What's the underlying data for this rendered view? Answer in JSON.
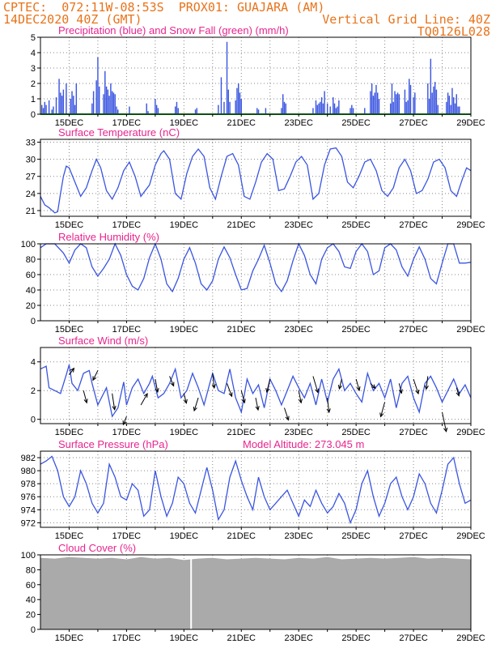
{
  "header": {
    "left_line1": "CPTEC:  072:11W-08:53S  PROX01: GUAJARA (AM)",
    "left_line2": "14DEC2020 40Z (GMT)",
    "right_line2": "Vertical Grid Line: 40Z",
    "right_line3": "TQ0126L028",
    "color": "#e8731a"
  },
  "colors": {
    "title": "#e8248f",
    "line": "#3a55e0",
    "snow": "#1f9e2a",
    "cloud": "#aaaaaa",
    "arrow": "#000000",
    "grid": "#888888"
  },
  "x_axis": {
    "start": "14DEC",
    "end": "29DEC",
    "tick_labels": [
      "15DEC",
      "17DEC",
      "19DEC",
      "21DEC",
      "23DEC",
      "25DEC",
      "27DEC",
      "29DEC"
    ]
  },
  "chart_data": [
    {
      "id": "precip",
      "type": "bar",
      "title": "Precipitation (blue) and Snow Fall (green) (mm/h)",
      "ylim": [
        0,
        5
      ],
      "yticks": [
        0,
        1,
        2,
        3,
        4,
        5
      ],
      "x": [
        0.05,
        0.1,
        0.15,
        0.2,
        0.3,
        0.4,
        0.45,
        0.55,
        0.65,
        0.7,
        0.75,
        0.8,
        0.9,
        1.05,
        1.1,
        1.15,
        1.2,
        1.25,
        1.8,
        1.85,
        1.95,
        2.0,
        2.05,
        2.2,
        2.25,
        2.3,
        2.35,
        2.4,
        2.45,
        2.5,
        2.55,
        2.6,
        2.65,
        2.7,
        3.1,
        3.7,
        3.75,
        4.0,
        4.05,
        4.1,
        4.7,
        4.75,
        4.8,
        5.4,
        5.45,
        6.2,
        6.3,
        6.4,
        6.5,
        6.55,
        6.6,
        6.8,
        6.85,
        6.9,
        6.95,
        7.0,
        7.55,
        7.6,
        7.85,
        8.4,
        8.45,
        8.5,
        8.55,
        9.5,
        9.6,
        9.65,
        9.7,
        9.75,
        9.8,
        9.85,
        9.9,
        10.0,
        10.1,
        10.2,
        10.25,
        10.3,
        10.35,
        10.4,
        10.8,
        10.85,
        10.9,
        11.3,
        11.5,
        11.55,
        11.6,
        11.65,
        11.7,
        11.75,
        11.8,
        12.2,
        12.25,
        12.3,
        12.35,
        12.4,
        12.45,
        12.5,
        12.7,
        12.75,
        12.8,
        12.85,
        12.9,
        13.0,
        13.05,
        13.5,
        13.55,
        13.6,
        13.65,
        13.7,
        13.75,
        13.8,
        13.85,
        14.15,
        14.2,
        14.25,
        14.3,
        14.35,
        14.4,
        14.45,
        14.5,
        14.55,
        14.6
      ],
      "values": [
        0.6,
        0.4,
        0.8,
        0.6,
        0.9,
        0.3,
        0.5,
        1.1,
        2.3,
        1.4,
        1.2,
        1.6,
        2.0,
        1.0,
        1.5,
        1.2,
        0.6,
        2.0,
        0.7,
        1.5,
        2.2,
        3.7,
        1.8,
        1.3,
        2.8,
        1.8,
        1.6,
        1.2,
        2.0,
        1.5,
        1.4,
        1.3,
        0.5,
        0.3,
        0.5,
        0.7,
        0.2,
        1.0,
        0.6,
        0.4,
        0.5,
        0.8,
        0.4,
        0.3,
        0.4,
        0.6,
        2.4,
        0.8,
        4.7,
        1.6,
        0.8,
        0.9,
        1.7,
        2.0,
        1.4,
        1.0,
        0.4,
        0.3,
        0.4,
        0.4,
        1.3,
        0.8,
        0.7,
        0.4,
        0.9,
        0.6,
        0.7,
        0.8,
        1.1,
        0.7,
        1.5,
        0.7,
        0.5,
        1.1,
        0.7,
        0.4,
        0.5,
        0.9,
        0.4,
        0.6,
        0.4,
        0.4,
        1.5,
        2.0,
        1.2,
        1.4,
        1.9,
        1.4,
        1.0,
        0.7,
        2.0,
        0.8,
        1.5,
        1.3,
        1.4,
        1.3,
        1.6,
        0.8,
        0.9,
        2.3,
        1.9,
        1.1,
        1.4,
        2.0,
        1.0,
        3.6,
        1.4,
        1.8,
        2.1,
        1.6,
        0.6,
        0.8,
        1.4,
        1.2,
        0.6,
        1.7,
        1.1,
        0.7,
        1.3,
        0.5,
        0.5
      ],
      "snow_values": 0
    },
    {
      "id": "temperature",
      "type": "line",
      "title": "Surface Temperature (nC)",
      "ylim": [
        20,
        33.5
      ],
      "yticks": [
        21,
        24,
        27,
        30,
        33
      ],
      "x": [
        0,
        0.15,
        0.3,
        0.5,
        0.6,
        0.7,
        0.8,
        0.9,
        1.0,
        1.2,
        1.4,
        1.6,
        1.8,
        1.95,
        2.1,
        2.3,
        2.5,
        2.7,
        2.9,
        3.1,
        3.3,
        3.5,
        3.8,
        4.0,
        4.2,
        4.3,
        4.5,
        4.7,
        4.9,
        5.1,
        5.3,
        5.5,
        5.7,
        5.9,
        6.1,
        6.3,
        6.5,
        6.7,
        6.9,
        7.1,
        7.3,
        7.5,
        7.7,
        7.9,
        8.1,
        8.3,
        8.5,
        8.7,
        8.9,
        9.1,
        9.3,
        9.5,
        9.7,
        9.9,
        10.1,
        10.3,
        10.5,
        10.7,
        10.9,
        11.1,
        11.3,
        11.5,
        11.7,
        11.9,
        12.1,
        12.3,
        12.5,
        12.7,
        12.9,
        13.1,
        13.3,
        13.5,
        13.7,
        13.9,
        14.1,
        14.3,
        14.5,
        14.7,
        14.85,
        15.0
      ],
      "values": [
        23.5,
        22,
        21.5,
        20.6,
        20.8,
        24,
        27,
        28.8,
        28.5,
        26,
        23.5,
        25,
        28,
        30,
        28.5,
        24.5,
        23,
        25,
        28,
        29.5,
        27,
        23.5,
        25.5,
        29,
        31,
        31.5,
        30,
        24,
        23,
        27.5,
        30.5,
        31.8,
        30.5,
        25,
        23,
        27,
        30.5,
        31,
        29,
        23.5,
        23,
        26,
        29.5,
        31,
        30,
        24.5,
        24.8,
        27,
        29.5,
        30.5,
        29,
        23,
        24,
        29,
        31.8,
        32,
        30.5,
        26,
        25,
        27,
        29.5,
        30,
        28,
        24.5,
        23.5,
        25,
        28.5,
        30,
        28,
        24,
        24.5,
        26.5,
        29.5,
        30,
        28.5,
        24.5,
        23.5,
        26.5,
        28.5,
        28
      ]
    },
    {
      "id": "humidity",
      "type": "line",
      "title": "Relative Humidity (%)",
      "ylim": [
        0,
        100
      ],
      "yticks": [
        0,
        20,
        40,
        60,
        80,
        100
      ],
      "x": [
        0,
        0.2,
        0.5,
        0.8,
        1.0,
        1.2,
        1.4,
        1.6,
        1.8,
        2.0,
        2.2,
        2.4,
        2.6,
        2.8,
        3.0,
        3.2,
        3.4,
        3.6,
        3.8,
        4.0,
        4.2,
        4.4,
        4.6,
        4.8,
        5.0,
        5.2,
        5.4,
        5.6,
        5.8,
        6.0,
        6.2,
        6.4,
        6.6,
        6.8,
        7.0,
        7.2,
        7.4,
        7.6,
        7.8,
        8.0,
        8.2,
        8.4,
        8.6,
        8.8,
        9.0,
        9.2,
        9.4,
        9.6,
        9.8,
        10.0,
        10.2,
        10.4,
        10.6,
        10.8,
        11.0,
        11.2,
        11.4,
        11.6,
        11.8,
        12.0,
        12.2,
        12.4,
        12.6,
        12.8,
        13.0,
        13.2,
        13.4,
        13.6,
        13.8,
        14.0,
        14.2,
        14.4,
        14.6,
        14.8,
        15.0
      ],
      "values": [
        95,
        100,
        100,
        88,
        75,
        92,
        100,
        95,
        70,
        58,
        68,
        80,
        100,
        85,
        60,
        45,
        40,
        55,
        82,
        100,
        80,
        48,
        38,
        55,
        80,
        95,
        75,
        48,
        40,
        52,
        80,
        96,
        82,
        60,
        40,
        42,
        65,
        80,
        98,
        75,
        48,
        38,
        52,
        78,
        100,
        85,
        60,
        48,
        80,
        95,
        100,
        90,
        70,
        68,
        90,
        100,
        90,
        60,
        65,
        95,
        100,
        92,
        70,
        58,
        80,
        96,
        80,
        55,
        48,
        75,
        100,
        100,
        75,
        75,
        76
      ]
    },
    {
      "id": "wind",
      "type": "line",
      "title": "Surface Wind (m/s)",
      "ylim": [
        -0.3,
        5
      ],
      "yticks": [
        0,
        2,
        4
      ],
      "x": [
        0,
        0.2,
        0.3,
        0.5,
        0.7,
        0.9,
        1.0,
        1.1,
        1.3,
        1.5,
        1.7,
        1.8,
        2.0,
        2.2,
        2.3,
        2.5,
        2.7,
        2.9,
        3.0,
        3.2,
        3.4,
        3.6,
        3.8,
        3.9,
        4.1,
        4.3,
        4.5,
        4.7,
        4.9,
        5.1,
        5.3,
        5.5,
        5.7,
        5.9,
        6.0,
        6.2,
        6.4,
        6.6,
        6.8,
        7.0,
        7.2,
        7.4,
        7.6,
        7.8,
        8.0,
        8.2,
        8.4,
        8.6,
        8.8,
        9.0,
        9.2,
        9.4,
        9.6,
        9.8,
        10.0,
        10.2,
        10.4,
        10.6,
        10.8,
        11.0,
        11.2,
        11.4,
        11.6,
        11.8,
        12.0,
        12.2,
        12.4,
        12.6,
        12.8,
        13.0,
        13.2,
        13.4,
        13.6,
        13.8,
        14.0,
        14.2,
        14.4,
        14.6,
        14.8,
        15.0
      ],
      "values": [
        3.5,
        3.7,
        2.2,
        2.0,
        1.8,
        3.1,
        3.8,
        2.5,
        2.0,
        3.2,
        3.4,
        2.5,
        1.0,
        1.8,
        2.2,
        0.2,
        0.8,
        2.6,
        1.0,
        2.2,
        2.8,
        1.8,
        2.5,
        3.0,
        1.5,
        1.8,
        2.5,
        3.5,
        1.5,
        2.0,
        3.2,
        2.2,
        1.0,
        2.5,
        3.2,
        2.0,
        1.8,
        3.5,
        1.5,
        0.5,
        2.8,
        1.8,
        2.4,
        0.8,
        2.8,
        2.0,
        1.0,
        2.0,
        3.0,
        2.2,
        1.5,
        2.5,
        1.0,
        2.8,
        1.2,
        2.8,
        3.5,
        2.0,
        2.5,
        1.8,
        1.2,
        3.2,
        2.0,
        2.5,
        1.5,
        2.8,
        0.8,
        2.5,
        3.0,
        1.5,
        0.5,
        2.5,
        3.0,
        2.2,
        1.2,
        2.0,
        2.8,
        1.8,
        2.4,
        1.5
      ],
      "arrows_x": [
        1.0,
        1.5,
        2.0,
        2.5,
        3.0,
        3.5,
        4.0,
        4.5,
        5.0,
        5.5,
        6.0,
        6.5,
        7.0,
        7.5,
        8.0,
        8.5,
        9.0,
        9.5,
        10.0,
        10.5,
        11.0,
        11.5,
        12.0,
        12.5,
        13.0,
        13.5,
        14.0,
        14.5
      ],
      "arrows_u": [
        0.6,
        0.4,
        -0.6,
        0.3,
        -0.4,
        0.8,
        0.3,
        0.5,
        0.3,
        -0.5,
        0.2,
        0.6,
        0.4,
        0.3,
        -0.4,
        0.5,
        0.3,
        0.6,
        0.2,
        -0.3,
        0.4,
        0.6,
        -0.5,
        0.3,
        0.6,
        -0.2,
        0.5,
        0.3
      ],
      "arrows_v": [
        0.8,
        -1.5,
        -1.2,
        -2.0,
        -1.0,
        1.4,
        -1.6,
        -1.2,
        -1.2,
        -1.6,
        -1.8,
        -1.6,
        -1.5,
        -1.5,
        -1.6,
        -1.5,
        -1.5,
        -2.0,
        -1.8,
        -1.2,
        -1.4,
        -0.6,
        -1.8,
        -1.2,
        -1.8,
        -1.6,
        -2.4,
        -1.0
      ]
    },
    {
      "id": "pressure",
      "type": "line",
      "title": "Surface Pressure (hPa)",
      "subtitle": "Model Altitude: 273.045 m",
      "ylim": [
        971.3,
        983
      ],
      "yticks": [
        972,
        974,
        976,
        978,
        980,
        982
      ],
      "x": [
        0,
        0.2,
        0.4,
        0.6,
        0.8,
        1.0,
        1.2,
        1.4,
        1.6,
        1.8,
        2.0,
        2.2,
        2.4,
        2.6,
        2.8,
        3.0,
        3.2,
        3.4,
        3.6,
        3.8,
        4.0,
        4.2,
        4.4,
        4.6,
        4.8,
        5.0,
        5.2,
        5.4,
        5.6,
        5.8,
        6.0,
        6.2,
        6.4,
        6.6,
        6.8,
        7.0,
        7.2,
        7.4,
        7.6,
        7.8,
        8.0,
        8.2,
        8.4,
        8.6,
        8.8,
        9.0,
        9.2,
        9.4,
        9.6,
        9.8,
        10.0,
        10.2,
        10.4,
        10.6,
        10.8,
        11.0,
        11.2,
        11.4,
        11.6,
        11.8,
        12.0,
        12.2,
        12.4,
        12.6,
        12.8,
        13.0,
        13.2,
        13.4,
        13.6,
        13.8,
        14.0,
        14.2,
        14.4,
        14.6,
        14.8,
        15.0
      ],
      "values": [
        981,
        981.5,
        982.2,
        980,
        976,
        974.5,
        976,
        980,
        978,
        975,
        973.5,
        975,
        981,
        979,
        976,
        975.5,
        978,
        977,
        973,
        974,
        980,
        976,
        973,
        975,
        979,
        978,
        975,
        973.5,
        977,
        980.5,
        977,
        972.5,
        974,
        979,
        981.5,
        978.5,
        976,
        974,
        979,
        976,
        974,
        975,
        976,
        977,
        975,
        973,
        975.5,
        974.5,
        977,
        975,
        973.5,
        974.5,
        976.5,
        975,
        972,
        974,
        978,
        980,
        976,
        973,
        975,
        978,
        979,
        976,
        974,
        976,
        979.5,
        978,
        975,
        973.5,
        977,
        981,
        982,
        978,
        975,
        975.5
      ]
    },
    {
      "id": "cloud",
      "type": "area",
      "title": "Cloud Cover (%)",
      "ylim": [
        0,
        100
      ],
      "yticks": [
        0,
        20,
        40,
        60,
        80,
        100
      ],
      "x": [
        0,
        0.5,
        1,
        1.5,
        2,
        2.5,
        3,
        3.5,
        4,
        4.5,
        5,
        5.5,
        6,
        6.5,
        7,
        7.5,
        8,
        8.5,
        9,
        9.5,
        10,
        10.5,
        11,
        11.5,
        12,
        12.5,
        13,
        13.5,
        14,
        14.5,
        15
      ],
      "values": [
        96,
        95,
        97,
        96,
        95,
        96,
        94,
        97,
        95,
        96,
        93,
        95,
        96,
        94,
        95,
        96,
        95,
        94,
        96,
        95,
        97,
        94,
        95,
        96,
        95,
        96,
        97,
        95,
        96,
        95,
        94
      ],
      "gap_x": 5.25
    }
  ]
}
